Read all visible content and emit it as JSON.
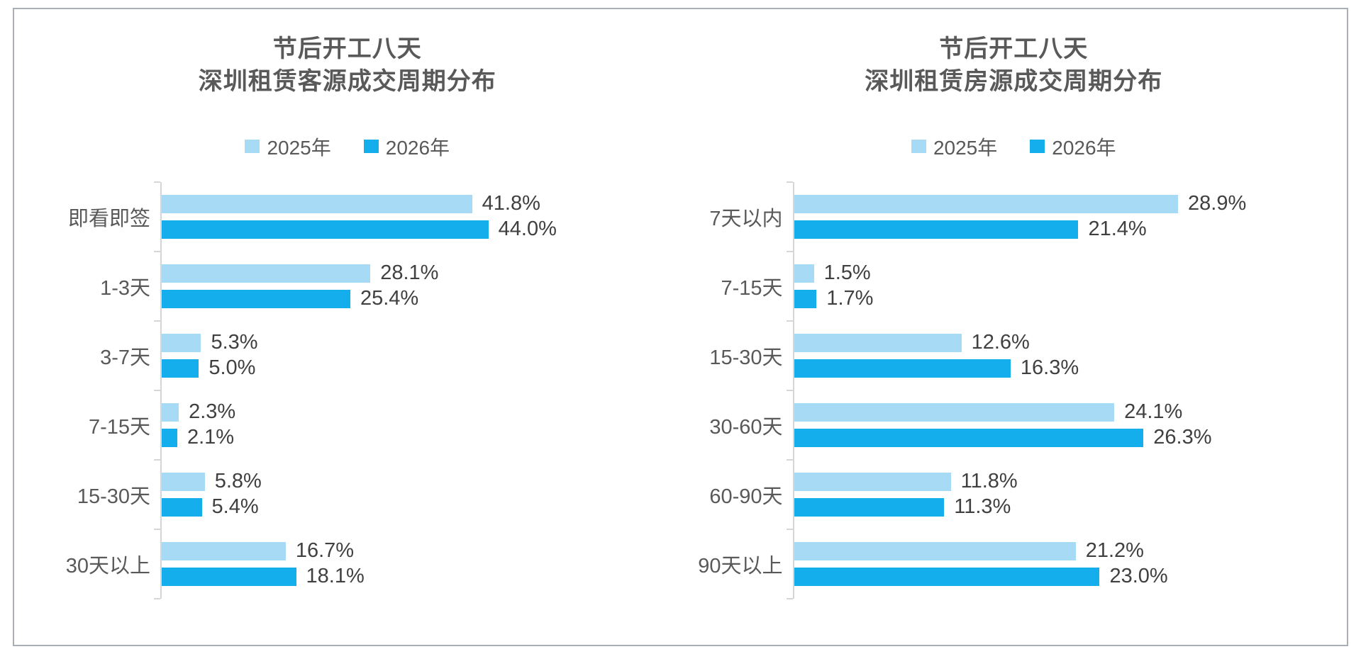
{
  "page": {
    "background": "#ffffff",
    "frame_border_color": "#a9afb5",
    "axis_color": "#d6d6d6",
    "title_text_color": "#595959",
    "value_text_color": "#404040"
  },
  "chart_data": [
    {
      "type": "bar",
      "orientation": "horizontal",
      "title_lines": [
        "节后开工八天",
        "深圳租赁客源成交周期分布"
      ],
      "legend_position": "top-center",
      "grid": false,
      "value_suffix": "%",
      "xlim": [
        0,
        67
      ],
      "categories": [
        "即看即签",
        "1-3天",
        "3-7天",
        "7-15天",
        "15-30天",
        "30天以上"
      ],
      "series": [
        {
          "name": "2025年",
          "color": "#a7dbf5",
          "values": [
            41.8,
            28.1,
            5.3,
            2.3,
            5.8,
            16.7
          ]
        },
        {
          "name": "2026年",
          "color": "#14aeec",
          "values": [
            44.0,
            25.4,
            5.0,
            2.1,
            5.4,
            18.1
          ]
        }
      ]
    },
    {
      "type": "bar",
      "orientation": "horizontal",
      "title_lines": [
        "节后开工八天",
        "深圳租赁房源成交周期分布"
      ],
      "legend_position": "top-center",
      "grid": false,
      "value_suffix": "%",
      "xlim": [
        0,
        40
      ],
      "categories": [
        "7天以内",
        "7-15天",
        "15-30天",
        "30-60天",
        "60-90天",
        "90天以上"
      ],
      "series": [
        {
          "name": "2025年",
          "color": "#a7dbf5",
          "values": [
            28.9,
            1.5,
            12.6,
            24.1,
            11.8,
            21.2
          ]
        },
        {
          "name": "2026年",
          "color": "#14aeec",
          "values": [
            21.4,
            1.7,
            16.3,
            26.3,
            11.3,
            23.0
          ]
        }
      ]
    }
  ]
}
